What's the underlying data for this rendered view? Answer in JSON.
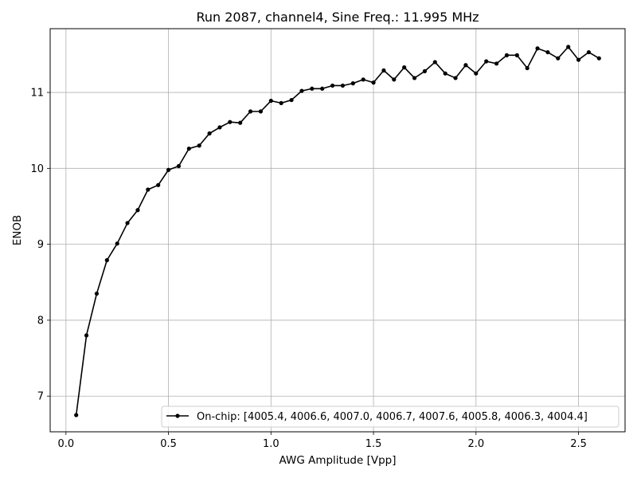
{
  "chart_data": {
    "type": "line",
    "title": "Run 2087, channel4, Sine Freq.: 11.995 MHz",
    "xlabel": "AWG Amplitude [Vpp]",
    "ylabel": "ENOB",
    "xlim": [
      -0.077,
      2.727
    ],
    "ylim": [
      6.53,
      11.84
    ],
    "x_ticks": [
      0.0,
      0.5,
      1.0,
      1.5,
      2.0,
      2.5
    ],
    "x_tick_labels": [
      "0.0",
      "0.5",
      "1.0",
      "1.5",
      "2.0",
      "2.5"
    ],
    "y_ticks": [
      7,
      8,
      9,
      10,
      11
    ],
    "y_tick_labels": [
      "7",
      "8",
      "9",
      "10",
      "11"
    ],
    "grid": true,
    "legend_position": "lower-right",
    "series": [
      {
        "name": "On-chip: [4005.4, 4006.6, 4007.0, 4006.7, 4007.6, 4005.8, 4006.3, 4004.4]",
        "color": "#000000",
        "marker": "circle",
        "x": [
          0.05,
          0.1,
          0.15,
          0.2,
          0.25,
          0.3,
          0.35,
          0.4,
          0.45,
          0.5,
          0.55,
          0.6,
          0.65,
          0.7,
          0.75,
          0.8,
          0.85,
          0.9,
          0.95,
          1.0,
          1.05,
          1.1,
          1.15,
          1.2,
          1.25,
          1.3,
          1.35,
          1.4,
          1.45,
          1.5,
          1.55,
          1.6,
          1.65,
          1.7,
          1.75,
          1.8,
          1.85,
          1.9,
          1.95,
          2.0,
          2.05,
          2.1,
          2.15,
          2.2,
          2.25,
          2.3,
          2.35,
          2.4,
          2.45,
          2.5,
          2.55,
          2.6
        ],
        "values": [
          6.75,
          7.8,
          8.35,
          8.79,
          9.01,
          9.28,
          9.45,
          9.72,
          9.78,
          9.98,
          10.03,
          10.26,
          10.3,
          10.46,
          10.54,
          10.61,
          10.6,
          10.75,
          10.75,
          10.89,
          10.86,
          10.9,
          11.02,
          11.05,
          11.05,
          11.09,
          11.09,
          11.12,
          11.17,
          11.13,
          11.29,
          11.17,
          11.33,
          11.19,
          11.28,
          11.4,
          11.25,
          11.19,
          11.36,
          11.25,
          11.41,
          11.38,
          11.49,
          11.49,
          11.32,
          11.58,
          11.53,
          11.45,
          11.6,
          11.43,
          11.53,
          11.45
        ]
      }
    ]
  }
}
